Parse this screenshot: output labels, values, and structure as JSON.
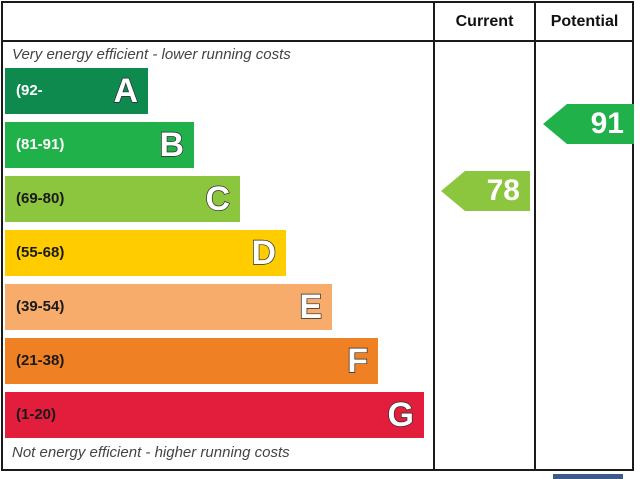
{
  "chart_data": {
    "type": "bar",
    "headers": {
      "current": "Current",
      "potential": "Potential"
    },
    "top_note": "Very energy efficient - lower running costs",
    "bottom_note": "Not energy efficient - higher running costs",
    "bands": [
      {
        "letter": "A",
        "range": "(92-",
        "color": "#0f8a4f",
        "range_color": "#ffffff"
      },
      {
        "letter": "B",
        "range": "(81-91)",
        "color": "#20b14a",
        "range_color": "#ffffff"
      },
      {
        "letter": "C",
        "range": "(69-80)",
        "color": "#8cc63f",
        "range_color": "#1a1a1a"
      },
      {
        "letter": "D",
        "range": "(55-68)",
        "color": "#ffcc00",
        "range_color": "#1a1a1a"
      },
      {
        "letter": "E",
        "range": "(39-54)",
        "color": "#f7ac6b",
        "range_color": "#1a1a1a"
      },
      {
        "letter": "F",
        "range": "(21-38)",
        "color": "#ef8023",
        "range_color": "#1a1a1a"
      },
      {
        "letter": "G",
        "range": "(1-20)",
        "color": "#e31d3c",
        "range_color": "#1a1a1a"
      }
    ],
    "current": {
      "value": 78,
      "label": "78",
      "band": "C",
      "color": "#8cc63f"
    },
    "potential": {
      "value": 91,
      "label": "91",
      "band": "B",
      "color": "#20b14a"
    }
  }
}
